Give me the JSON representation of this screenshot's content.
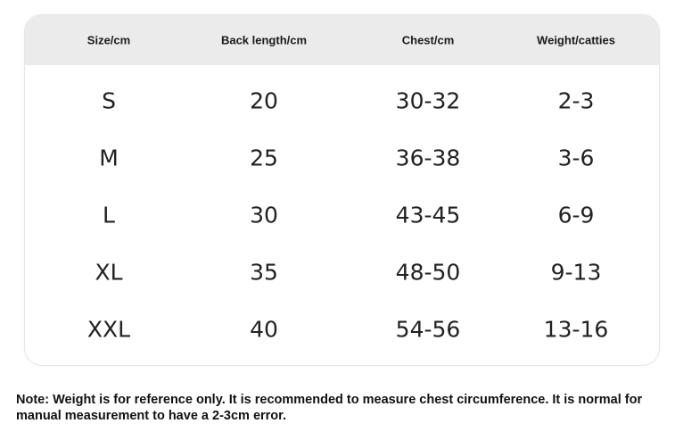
{
  "table": {
    "headers": [
      "Size/cm",
      "Back length/cm",
      "Chest/cm",
      "Weight/catties"
    ],
    "rows": [
      [
        "S",
        "20",
        "30-32",
        "2-3"
      ],
      [
        "M",
        "25",
        "36-38",
        "3-6"
      ],
      [
        "L",
        "30",
        "43-45",
        "6-9"
      ],
      [
        "XL",
        "35",
        "48-50",
        "9-13"
      ],
      [
        "XXL",
        "40",
        "54-56",
        "13-16"
      ]
    ]
  },
  "note": "Note: Weight is for reference only. It is recommended to measure chest circumference. It is normal for manual measurement to have a 2-3cm error."
}
